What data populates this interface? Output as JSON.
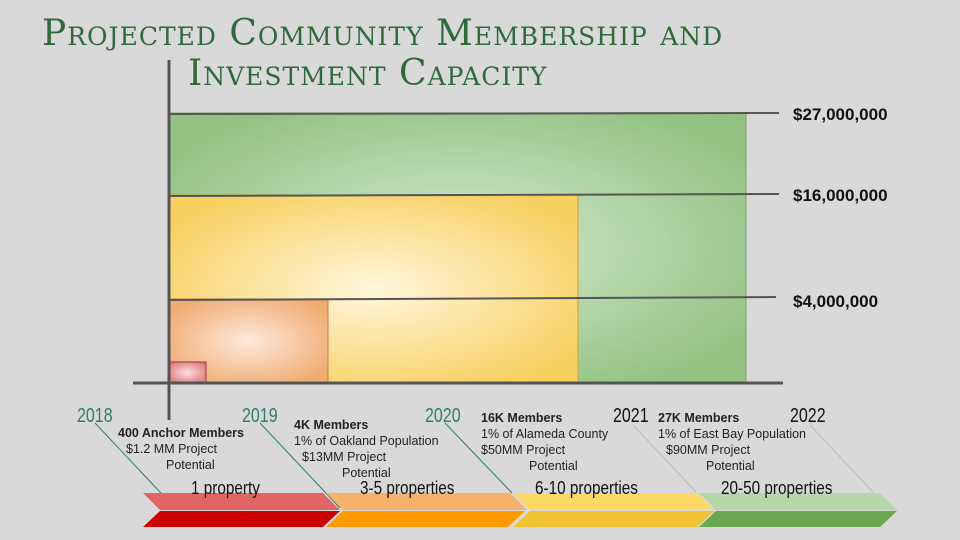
{
  "title": {
    "line1": "Projected Community Membership and",
    "line2": "Investment Capacity"
  },
  "values": [
    "$27,000,000",
    "$16,000,000",
    "$4,000,000"
  ],
  "milestones": [
    {
      "year": "2018",
      "head": "400 Anchor Members",
      "l1": "$1.2 MM Project",
      "l2": "Potential",
      "properties": "1 property"
    },
    {
      "year": "2019",
      "head": "4K Members",
      "l1": "1% of Oakland Population",
      "l2": "$13MM Project",
      "l3": "Potential",
      "properties": "3-5 properties"
    },
    {
      "year": "2020",
      "head": "16K Members",
      "l1": "1% of Alameda County",
      "l2": "$50MM Project",
      "l3": "Potential",
      "properties": "6-10 properties"
    },
    {
      "year": "2021",
      "head": "27K Members",
      "l1": "1% of East Bay Population",
      "l2": "$90MM Project",
      "l3": "Potential",
      "properties": "20-50 properties"
    },
    {
      "year": "2022"
    }
  ],
  "colors": {
    "title": "#2f6b3a",
    "teal": "#2e7d6e",
    "red": "#cc0000",
    "orange": "#ff9900",
    "yellow": "#f1c232",
    "green": "#6aa84f"
  }
}
